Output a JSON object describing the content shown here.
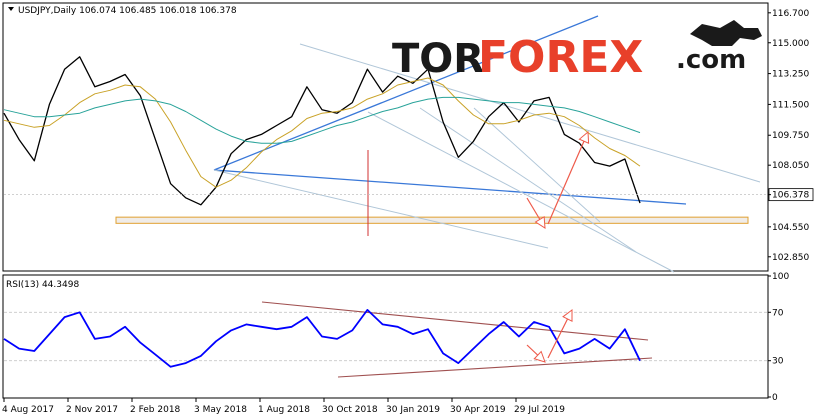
{
  "chart_data": [
    {
      "type": "line",
      "title": "USDJPY,Daily 106.074 106.485 106.018 106.378",
      "ylim": [
        102.1,
        117.2
      ],
      "yticks": [
        "116.700",
        "115.000",
        "113.250",
        "111.500",
        "109.750",
        "108.050",
        "106.378",
        "104.550",
        "102.850"
      ],
      "current_price": "106.378",
      "dates": [
        "2017-08-04",
        "2017-08-21",
        "2017-09-07",
        "2017-09-25",
        "2017-10-12",
        "2017-10-30",
        "2017-11-16",
        "2017-12-04",
        "2017-12-21",
        "2018-01-08",
        "2018-01-25",
        "2018-02-12",
        "2018-03-01",
        "2018-03-19",
        "2018-04-05",
        "2018-04-23",
        "2018-05-10",
        "2018-05-28",
        "2018-06-14",
        "2018-07-02",
        "2018-07-19",
        "2018-08-06",
        "2018-08-23",
        "2018-09-10",
        "2018-09-27",
        "2018-10-15",
        "2018-11-01",
        "2018-11-19",
        "2018-12-06",
        "2018-12-24",
        "2019-01-10",
        "2019-01-28",
        "2019-02-14",
        "2019-03-04",
        "2019-03-21",
        "2019-04-08",
        "2019-04-25",
        "2019-05-13",
        "2019-05-30",
        "2019-06-17",
        "2019-07-04",
        "2019-07-22",
        "2019-08-07"
      ],
      "series": [
        {
          "values": [
            111.0,
            109.5,
            108.3,
            111.5,
            113.5,
            114.2,
            112.5,
            112.8,
            113.2,
            112.0,
            109.5,
            107.0,
            106.2,
            105.8,
            106.8,
            108.7,
            109.5,
            109.8,
            110.3,
            110.8,
            112.5,
            111.2,
            111.0,
            111.6,
            113.5,
            112.2,
            113.1,
            112.7,
            113.5,
            110.5,
            108.5,
            109.4,
            110.8,
            111.6,
            110.5,
            111.7,
            111.9,
            109.8,
            109.3,
            108.2,
            108.0,
            108.4,
            105.9
          ],
          "color": "#000000"
        },
        {
          "values": [
            110.6,
            110.4,
            110.2,
            110.3,
            110.9,
            111.6,
            112.1,
            112.3,
            112.6,
            112.5,
            111.8,
            110.5,
            108.9,
            107.4,
            106.8,
            107.2,
            107.9,
            108.8,
            109.5,
            110.0,
            110.7,
            111.0,
            111.1,
            111.3,
            111.8,
            112.1,
            112.6,
            112.8,
            113.0,
            112.6,
            111.7,
            110.9,
            110.4,
            110.4,
            110.6,
            110.9,
            111.0,
            110.8,
            110.3,
            109.6,
            109.0,
            108.6,
            108.0
          ],
          "color": "#c9a227"
        },
        {
          "values": [
            111.2,
            111.0,
            110.8,
            110.8,
            110.9,
            111.0,
            111.3,
            111.5,
            111.7,
            111.8,
            111.7,
            111.5,
            111.1,
            110.6,
            110.1,
            109.7,
            109.4,
            109.3,
            109.3,
            109.4,
            109.7,
            110.0,
            110.3,
            110.5,
            110.8,
            111.1,
            111.3,
            111.6,
            111.8,
            111.9,
            111.9,
            111.8,
            111.7,
            111.6,
            111.6,
            111.5,
            111.4,
            111.3,
            111.1,
            110.8,
            110.5,
            110.2,
            109.9
          ],
          "color": "#29a39a"
        }
      ],
      "support_zone": [
        104.75,
        105.1
      ],
      "xticks": [
        "4 Aug 2017",
        "2 Nov 2017",
        "2 Feb 2018",
        "3 May 2018",
        "1 Aug 2018",
        "30 Oct 2018",
        "30 Jan 2019",
        "30 Apr 2019",
        "29 Jul 2019"
      ]
    },
    {
      "type": "line",
      "title": "RSI(13) 44.3498",
      "ylim": [
        0,
        100
      ],
      "yticks": [
        "100",
        "70",
        "30",
        "0"
      ],
      "levels": [
        70,
        30
      ],
      "series": [
        {
          "values": [
            48,
            40,
            38,
            52,
            66,
            70,
            48,
            50,
            58,
            45,
            35,
            25,
            28,
            34,
            46,
            55,
            60,
            58,
            56,
            58,
            66,
            50,
            48,
            55,
            72,
            60,
            58,
            52,
            56,
            36,
            28,
            40,
            52,
            62,
            50,
            62,
            58,
            36,
            40,
            48,
            40,
            56,
            30
          ],
          "color": "#0000ff"
        }
      ]
    }
  ],
  "watermark": {
    "left": "TOR",
    "main": "FOREX",
    "suffix": ".com",
    "color_dark": "#1a1a1a",
    "color_red": "#e8402a"
  }
}
